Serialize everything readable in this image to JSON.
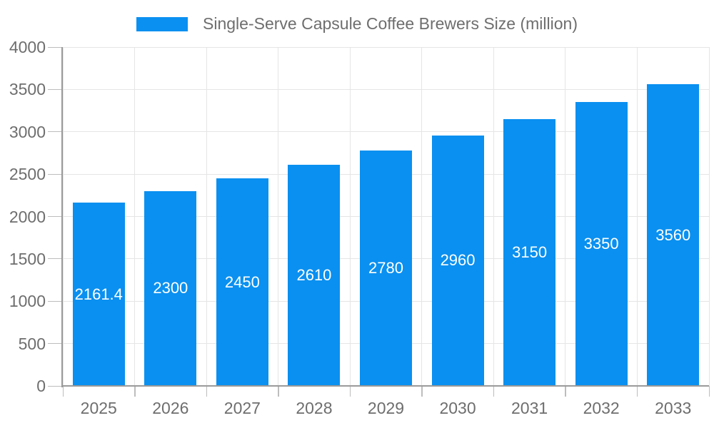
{
  "legend": {
    "label": "Single-Serve Capsule Coffee Brewers Size (million)"
  },
  "colors": {
    "bar": "#0a90f0",
    "axis_line": "#9a9a9a",
    "grid_line": "#e5e5e5",
    "tick_mark": "#bdbdbd",
    "tick_label": "#6e6e6e",
    "legend_text": "#6e6e6e",
    "bar_label": "#ffffff",
    "background": "#ffffff"
  },
  "chart_data": {
    "type": "bar",
    "title": "Single-Serve Capsule Coffee Brewers Size (million)",
    "categories": [
      "2025",
      "2026",
      "2027",
      "2028",
      "2029",
      "2030",
      "2031",
      "2032",
      "2033"
    ],
    "values": [
      2161.4,
      2300,
      2450,
      2610,
      2780,
      2960,
      3150,
      3350,
      3560
    ],
    "value_labels": [
      "2161.4",
      "2300",
      "2450",
      "2610",
      "2780",
      "2960",
      "3150",
      "3350",
      "3560"
    ],
    "series_name": "Single-Serve Capsule Coffee Brewers Size (million)",
    "xlabel": "",
    "ylabel": "",
    "ylim": [
      0,
      4000
    ],
    "yticks": [
      0,
      500,
      1000,
      1500,
      2000,
      2500,
      3000,
      3500,
      4000
    ],
    "grid": true,
    "legend_position": "top",
    "value_label_position": "center-of-bar"
  }
}
